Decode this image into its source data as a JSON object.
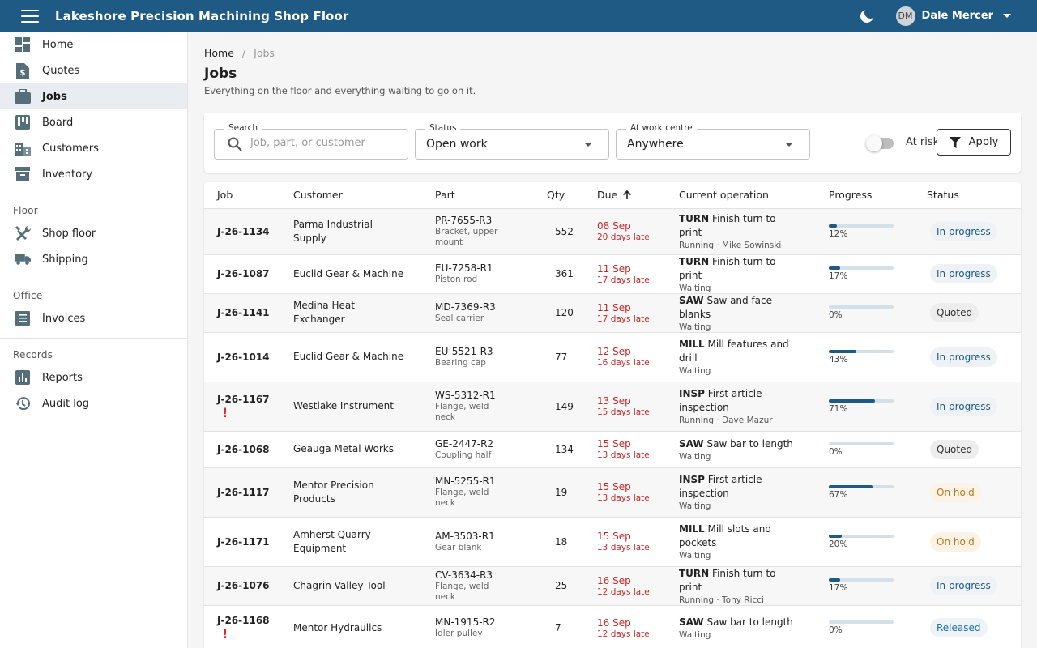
{
  "app": {
    "title": "Lakeshore Precision Machining Shop Floor"
  },
  "user": {
    "initials": "DM",
    "name": "Dale Mercer"
  },
  "sidebar": {
    "primary": [
      {
        "label": "Home",
        "icon": "dashboard-icon"
      },
      {
        "label": "Quotes",
        "icon": "quote-document-icon"
      },
      {
        "label": "Jobs",
        "icon": "briefcase-icon",
        "active": true
      },
      {
        "label": "Board",
        "icon": "kanban-board-icon"
      },
      {
        "label": "Customers",
        "icon": "building-icon"
      },
      {
        "label": "Inventory",
        "icon": "archive-box-icon"
      }
    ],
    "sections": [
      {
        "title": "Floor",
        "items": [
          {
            "label": "Shop floor",
            "icon": "tools-icon"
          },
          {
            "label": "Shipping",
            "icon": "truck-icon"
          }
        ]
      },
      {
        "title": "Office",
        "items": [
          {
            "label": "Invoices",
            "icon": "receipt-icon"
          }
        ]
      },
      {
        "title": "Records",
        "items": [
          {
            "label": "Reports",
            "icon": "bar-chart-icon"
          },
          {
            "label": "Audit log",
            "icon": "history-icon"
          }
        ]
      }
    ]
  },
  "breadcrumb": {
    "home": "Home",
    "current": "Jobs"
  },
  "page": {
    "title": "Jobs",
    "subtitle": "Everything on the floor and everything waiting to go on it."
  },
  "filters": {
    "search": {
      "label": "Search",
      "placeholder": "Job, part, or customer",
      "value": ""
    },
    "status": {
      "label": "Status",
      "value": "Open work"
    },
    "work_centre": {
      "label": "At work centre",
      "value": "Anywhere"
    },
    "at_risk": {
      "label": "At risk",
      "on": false
    },
    "apply_label": "Apply"
  },
  "table": {
    "columns": [
      "Job",
      "Customer",
      "Part",
      "Qty",
      "Due",
      "Current operation",
      "Progress",
      "Status"
    ],
    "sort": {
      "column": "Due",
      "direction": "ascending"
    },
    "rows": [
      {
        "job": "J-26-1134",
        "risk": false,
        "customer": "Parma Industrial Supply",
        "part": "PR-7655-R3",
        "part_name": "Bracket, upper mount",
        "qty": "552",
        "due": "08 Sep",
        "late": "20 days late",
        "op_code": "TURN",
        "op_desc": "Finish turn to print",
        "op_status": "Running · Mike Sowinski",
        "progress": 12,
        "progress_text": "12%",
        "status": "In progress",
        "status_kind": "progress"
      },
      {
        "job": "J-26-1087",
        "risk": false,
        "customer": "Euclid Gear & Machine",
        "part": "EU-7258-R1",
        "part_name": "Piston rod",
        "qty": "361",
        "due": "11 Sep",
        "late": "17 days late",
        "op_code": "TURN",
        "op_desc": "Finish turn to print",
        "op_status": "Waiting",
        "progress": 17,
        "progress_text": "17%",
        "status": "In progress",
        "status_kind": "progress"
      },
      {
        "job": "J-26-1141",
        "risk": false,
        "customer": "Medina Heat Exchanger",
        "part": "MD-7369-R3",
        "part_name": "Seal carrier",
        "qty": "120",
        "due": "11 Sep",
        "late": "17 days late",
        "op_code": "SAW",
        "op_desc": "Saw and face blanks",
        "op_status": "Waiting",
        "progress": 0,
        "progress_text": "0%",
        "status": "Quoted",
        "status_kind": "quoted"
      },
      {
        "job": "J-26-1014",
        "risk": false,
        "customer": "Euclid Gear & Machine",
        "part": "EU-5521-R3",
        "part_name": "Bearing cap",
        "qty": "77",
        "due": "12 Sep",
        "late": "16 days late",
        "op_code": "MILL",
        "op_desc": "Mill features and drill",
        "op_status": "Waiting",
        "progress": 43,
        "progress_text": "43%",
        "status": "In progress",
        "status_kind": "progress"
      },
      {
        "job": "J-26-1167",
        "risk": true,
        "customer": "Westlake Instrument",
        "part": "WS-5312-R1",
        "part_name": "Flange, weld neck",
        "qty": "149",
        "due": "13 Sep",
        "late": "15 days late",
        "op_code": "INSP",
        "op_desc": "First article inspection",
        "op_status": "Running · Dave Mazur",
        "progress": 71,
        "progress_text": "71%",
        "status": "In progress",
        "status_kind": "progress"
      },
      {
        "job": "J-26-1068",
        "risk": false,
        "customer": "Geauga Metal Works",
        "part": "GE-2447-R2",
        "part_name": "Coupling half",
        "qty": "134",
        "due": "15 Sep",
        "late": "13 days late",
        "op_code": "SAW",
        "op_desc": "Saw bar to length",
        "op_status": "Waiting",
        "progress": 0,
        "progress_text": "0%",
        "status": "Quoted",
        "status_kind": "quoted"
      },
      {
        "job": "J-26-1117",
        "risk": false,
        "customer": "Mentor Precision Products",
        "part": "MN-5255-R1",
        "part_name": "Flange, weld neck",
        "qty": "19",
        "due": "15 Sep",
        "late": "13 days late",
        "op_code": "INSP",
        "op_desc": "First article inspection",
        "op_status": "Waiting",
        "progress": 67,
        "progress_text": "67%",
        "status": "On hold",
        "status_kind": "hold"
      },
      {
        "job": "J-26-1171",
        "risk": false,
        "customer": "Amherst Quarry Equipment",
        "part": "AM-3503-R1",
        "part_name": "Gear blank",
        "qty": "18",
        "due": "15 Sep",
        "late": "13 days late",
        "op_code": "MILL",
        "op_desc": "Mill slots and pockets",
        "op_status": "Waiting",
        "progress": 20,
        "progress_text": "20%",
        "status": "On hold",
        "status_kind": "hold"
      },
      {
        "job": "J-26-1076",
        "risk": false,
        "customer": "Chagrin Valley Tool",
        "part": "CV-3634-R3",
        "part_name": "Flange, weld neck",
        "qty": "25",
        "due": "16 Sep",
        "late": "12 days late",
        "op_code": "TURN",
        "op_desc": "Finish turn to print",
        "op_status": "Running · Tony Ricci",
        "progress": 17,
        "progress_text": "17%",
        "status": "In progress",
        "status_kind": "progress"
      },
      {
        "job": "J-26-1168",
        "risk": true,
        "customer": "Mentor Hydraulics",
        "part": "MN-1915-R2",
        "part_name": "Idler pulley",
        "qty": "7",
        "due": "16 Sep",
        "late": "12 days late",
        "op_code": "SAW",
        "op_desc": "Saw bar to length",
        "op_status": "Waiting",
        "progress": 0,
        "progress_text": "0%",
        "status": "Released",
        "status_kind": "released"
      }
    ]
  },
  "colors": {
    "appbar": "#1f5a85",
    "late": "#c62828",
    "risk": "#d32f2f"
  }
}
